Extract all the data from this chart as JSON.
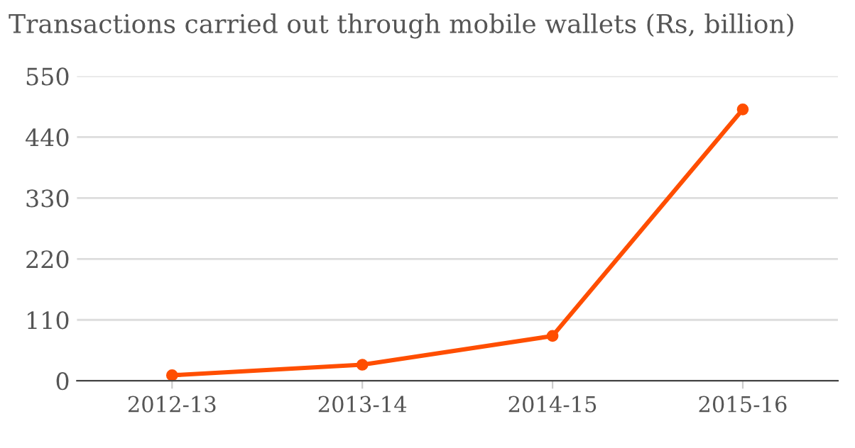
{
  "chart_data": {
    "type": "line",
    "title": "Transactions carried out through mobile wallets (Rs, billion)",
    "categories": [
      "2012-13",
      "2013-14",
      "2014-15",
      "2015-16"
    ],
    "series": [
      {
        "color": "#ff4e00",
        "values": [
          10,
          29,
          81,
          490
        ]
      }
    ],
    "ylim": [
      0,
      550
    ],
    "yticks": [
      0,
      110,
      220,
      330,
      440,
      550
    ],
    "grid": "y",
    "marker": "circle",
    "line_style": "solid"
  }
}
